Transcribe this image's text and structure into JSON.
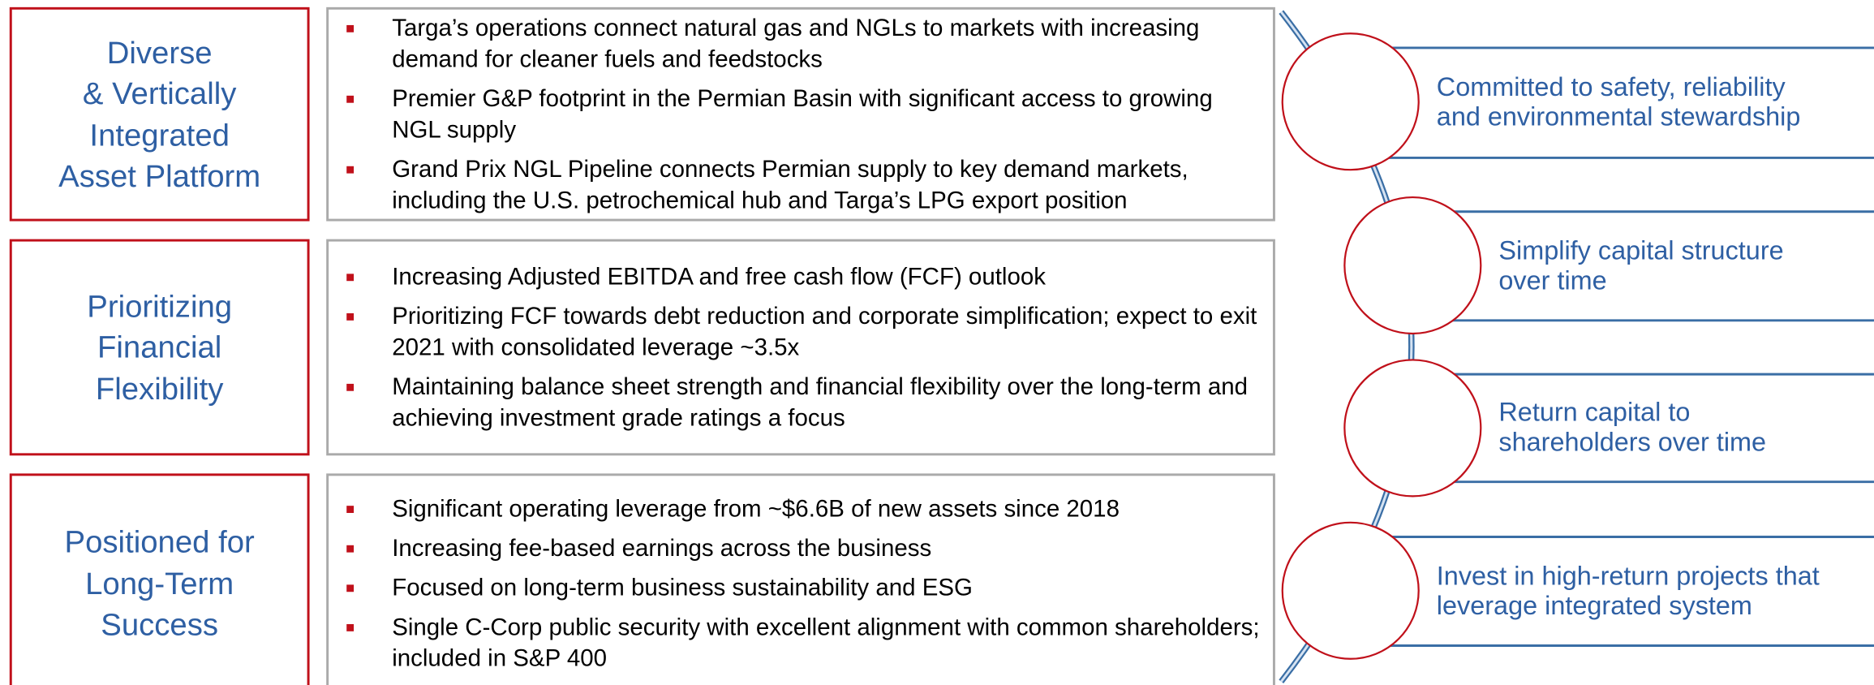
{
  "rows": [
    {
      "title": [
        "Diverse",
        "& Vertically",
        "Integrated",
        "Asset Platform"
      ],
      "bullets": [
        "Targa’s operations connect natural gas and NGLs to markets with increasing demand for cleaner fuels and feedstocks",
        "Premier G&P footprint in the Permian Basin with significant access to growing NGL supply",
        "Grand Prix NGL Pipeline connects Permian supply to key demand markets, including the U.S. petrochemical hub and Targa’s LPG export position"
      ]
    },
    {
      "title": [
        "Prioritizing",
        "Financial",
        "Flexibility"
      ],
      "bullets": [
        "Increasing Adjusted EBITDA and free cash flow (FCF) outlook",
        "Prioritizing FCF towards debt reduction and corporate simplification; expect to exit 2021 with consolidated leverage ~3.5x",
        "Maintaining balance sheet strength and financial flexibility over the long-term and achieving investment grade ratings a focus"
      ]
    },
    {
      "title": [
        "Positioned for",
        "Long-Term",
        "Success"
      ],
      "bullets": [
        "Significant operating leverage from ~$6.6B of new assets since 2018",
        "Increasing fee-based earnings across the business",
        "Focused on long-term business sustainability and ESG",
        "Single C-Corp public security with excellent alignment with common shareholders; included in S&P 400"
      ]
    }
  ],
  "priorities": [
    [
      "Committed to safety, reliability",
      "and environmental stewardship"
    ],
    [
      "Simplify capital structure",
      "over time"
    ],
    [
      "Return capital to",
      "shareholders over time"
    ],
    [
      "Invest in high-return projects that",
      "leverage integrated system"
    ]
  ]
}
